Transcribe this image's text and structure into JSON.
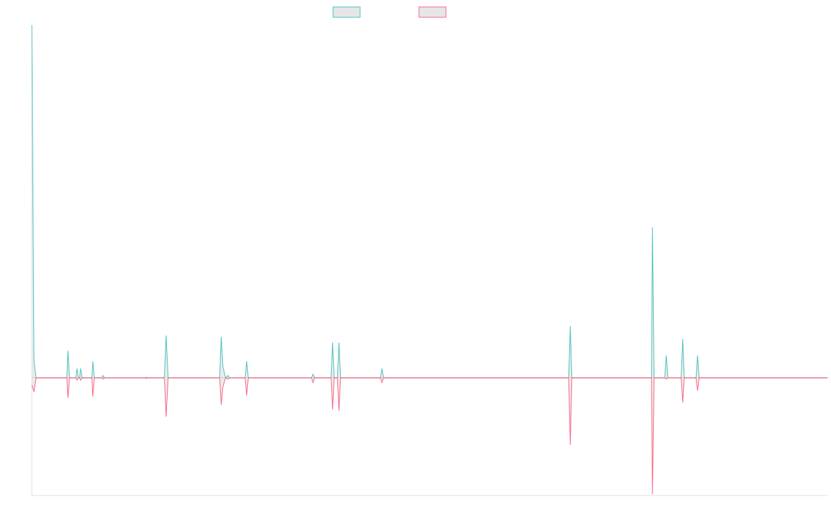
{
  "chart_data": {
    "type": "line",
    "title": "",
    "xlabel": "",
    "ylabel": "",
    "grid": false,
    "legend_position": "top-center",
    "x_axis": {
      "show_labels": false,
      "min": 0,
      "max": 150
    },
    "y_axis": {
      "show_labels": false,
      "min": -100,
      "max": 300
    },
    "baseline_color": "#999999",
    "axis_color": "#dddddd",
    "series": [
      {
        "name": "",
        "color": "#4bc0c0",
        "fill": "#e6e6e6",
        "points": [
          [
            0,
            300
          ],
          [
            0.4,
            15
          ],
          [
            0.8,
            0
          ],
          [
            6.6,
            0
          ],
          [
            6.8,
            23
          ],
          [
            7.1,
            0
          ],
          [
            8.3,
            0
          ],
          [
            8.5,
            8
          ],
          [
            8.8,
            0
          ],
          [
            9.0,
            0
          ],
          [
            9.2,
            8
          ],
          [
            9.5,
            0
          ],
          [
            11.3,
            0
          ],
          [
            11.5,
            14
          ],
          [
            11.8,
            0
          ],
          [
            13.2,
            0
          ],
          [
            13.4,
            2
          ],
          [
            13.7,
            0
          ],
          [
            21.4,
            0
          ],
          [
            21.6,
            0.5
          ],
          [
            21.8,
            0
          ],
          [
            24.7,
            0
          ],
          [
            25.0,
            1
          ],
          [
            25.3,
            36
          ],
          [
            25.7,
            0
          ],
          [
            35.4,
            0
          ],
          [
            35.7,
            35
          ],
          [
            36.0,
            10
          ],
          [
            36.5,
            0
          ],
          [
            37.0,
            2
          ],
          [
            37.3,
            0
          ],
          [
            40.2,
            0
          ],
          [
            40.5,
            14
          ],
          [
            40.8,
            0
          ],
          [
            52.7,
            0
          ],
          [
            53.0,
            3
          ],
          [
            53.3,
            0
          ],
          [
            56.4,
            0
          ],
          [
            56.7,
            30
          ],
          [
            57.0,
            0
          ],
          [
            57.6,
            0
          ],
          [
            57.9,
            30
          ],
          [
            58.2,
            0
          ],
          [
            65.7,
            0
          ],
          [
            66.0,
            8
          ],
          [
            66.3,
            0
          ],
          [
            101.2,
            0
          ],
          [
            101.5,
            44
          ],
          [
            101.8,
            0
          ],
          [
            116.8,
            0
          ],
          [
            117.0,
            128
          ],
          [
            117.3,
            0
          ],
          [
            119.3,
            0
          ],
          [
            119.6,
            19
          ],
          [
            119.9,
            0
          ],
          [
            122.4,
            0
          ],
          [
            122.7,
            33
          ],
          [
            123.0,
            0
          ],
          [
            125.2,
            0
          ],
          [
            125.5,
            19
          ],
          [
            125.8,
            0
          ],
          [
            150,
            0
          ]
        ]
      },
      {
        "name": "",
        "color": "#ff6384",
        "fill": "#e6e6e6",
        "points": [
          [
            0,
            -6
          ],
          [
            0.4,
            -12
          ],
          [
            0.8,
            0
          ],
          [
            6.6,
            0
          ],
          [
            6.8,
            -17
          ],
          [
            7.1,
            0
          ],
          [
            8.3,
            0
          ],
          [
            8.5,
            -2
          ],
          [
            8.8,
            0
          ],
          [
            9.0,
            0
          ],
          [
            9.2,
            -2
          ],
          [
            9.5,
            0
          ],
          [
            11.3,
            0
          ],
          [
            11.5,
            -16
          ],
          [
            11.8,
            0
          ],
          [
            13.2,
            0
          ],
          [
            13.4,
            -1
          ],
          [
            13.7,
            0
          ],
          [
            21.4,
            0
          ],
          [
            21.6,
            -0.5
          ],
          [
            21.8,
            0
          ],
          [
            24.7,
            0
          ],
          [
            25.0,
            -1
          ],
          [
            25.3,
            -33
          ],
          [
            25.7,
            0
          ],
          [
            35.4,
            0
          ],
          [
            35.7,
            -23
          ],
          [
            36.0,
            -8
          ],
          [
            36.5,
            0
          ],
          [
            37.0,
            -1
          ],
          [
            37.3,
            0
          ],
          [
            40.2,
            0
          ],
          [
            40.5,
            -15
          ],
          [
            40.8,
            0
          ],
          [
            52.7,
            0
          ],
          [
            53.0,
            -4
          ],
          [
            53.3,
            0
          ],
          [
            56.4,
            0
          ],
          [
            56.7,
            -27
          ],
          [
            57.0,
            0
          ],
          [
            57.6,
            0
          ],
          [
            57.9,
            -28
          ],
          [
            58.2,
            0
          ],
          [
            65.7,
            0
          ],
          [
            66.0,
            -4
          ],
          [
            66.3,
            0
          ],
          [
            101.2,
            0
          ],
          [
            101.5,
            -57
          ],
          [
            101.8,
            0
          ],
          [
            116.8,
            0
          ],
          [
            117.0,
            -99
          ],
          [
            117.3,
            0
          ],
          [
            119.3,
            0
          ],
          [
            119.6,
            -1
          ],
          [
            119.9,
            0
          ],
          [
            122.4,
            0
          ],
          [
            122.7,
            -21
          ],
          [
            123.0,
            0
          ],
          [
            125.2,
            0
          ],
          [
            125.5,
            -11
          ],
          [
            125.8,
            0
          ],
          [
            150,
            0
          ]
        ]
      }
    ]
  }
}
